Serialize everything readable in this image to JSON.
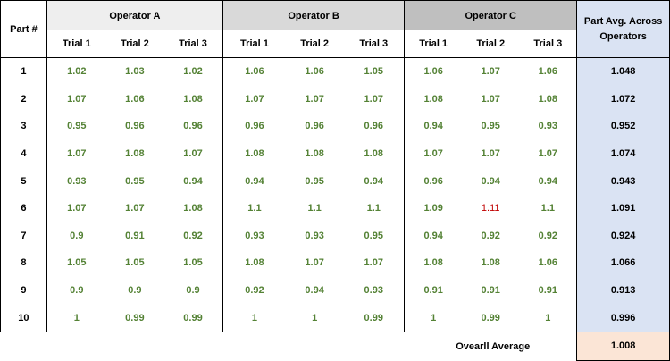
{
  "header": {
    "part_label": "Part #",
    "operators": [
      "Operator A",
      "Operator B",
      "Operator C"
    ],
    "trials": [
      "Trial 1",
      "Trial 2",
      "Trial 3"
    ],
    "avg_label": "Part Avg. Across Operators"
  },
  "rows": [
    {
      "part": "1",
      "values": [
        "1.02",
        "1.03",
        "1.02",
        "1.06",
        "1.06",
        "1.05",
        "1.06",
        "1.07",
        "1.06"
      ],
      "avg": "1.048"
    },
    {
      "part": "2",
      "values": [
        "1.07",
        "1.06",
        "1.08",
        "1.07",
        "1.07",
        "1.07",
        "1.08",
        "1.07",
        "1.08"
      ],
      "avg": "1.072"
    },
    {
      "part": "3",
      "values": [
        "0.95",
        "0.96",
        "0.96",
        "0.96",
        "0.96",
        "0.96",
        "0.94",
        "0.95",
        "0.93"
      ],
      "avg": "0.952"
    },
    {
      "part": "4",
      "values": [
        "1.07",
        "1.08",
        "1.07",
        "1.08",
        "1.08",
        "1.08",
        "1.07",
        "1.07",
        "1.07"
      ],
      "avg": "1.074"
    },
    {
      "part": "5",
      "values": [
        "0.93",
        "0.95",
        "0.94",
        "0.94",
        "0.95",
        "0.94",
        "0.96",
        "0.94",
        "0.94"
      ],
      "avg": "0.943"
    },
    {
      "part": "6",
      "values": [
        "1.07",
        "1.07",
        "1.08",
        "1.1",
        "1.1",
        "1.1",
        "1.09",
        "1.11",
        "1.1"
      ],
      "avg": "1.091"
    },
    {
      "part": "7",
      "values": [
        "0.9",
        "0.91",
        "0.92",
        "0.93",
        "0.93",
        "0.95",
        "0.94",
        "0.92",
        "0.92"
      ],
      "avg": "0.924"
    },
    {
      "part": "8",
      "values": [
        "1.05",
        "1.05",
        "1.05",
        "1.08",
        "1.07",
        "1.07",
        "1.08",
        "1.08",
        "1.06"
      ],
      "avg": "1.066"
    },
    {
      "part": "9",
      "values": [
        "0.9",
        "0.9",
        "0.9",
        "0.92",
        "0.94",
        "0.93",
        "0.91",
        "0.91",
        "0.91"
      ],
      "avg": "0.913"
    },
    {
      "part": "10",
      "values": [
        "1",
        "0.99",
        "0.99",
        "1",
        "1",
        "0.99",
        "1",
        "0.99",
        "1"
      ],
      "avg": "0.996"
    }
  ],
  "highlight": {
    "row": 5,
    "col": 7,
    "color": "#c00000"
  },
  "colors": {
    "value_text": "#548235",
    "highlight_text": "#c00000",
    "operator_a_bg": "#eeeeee",
    "operator_b_bg": "#d9d9d9",
    "operator_c_bg": "#bfbfbf",
    "avg_bg": "#dae3f3",
    "overall_bg": "#fbe5d6"
  },
  "overall": {
    "label": "Ovearll Average",
    "value": "1.008"
  }
}
